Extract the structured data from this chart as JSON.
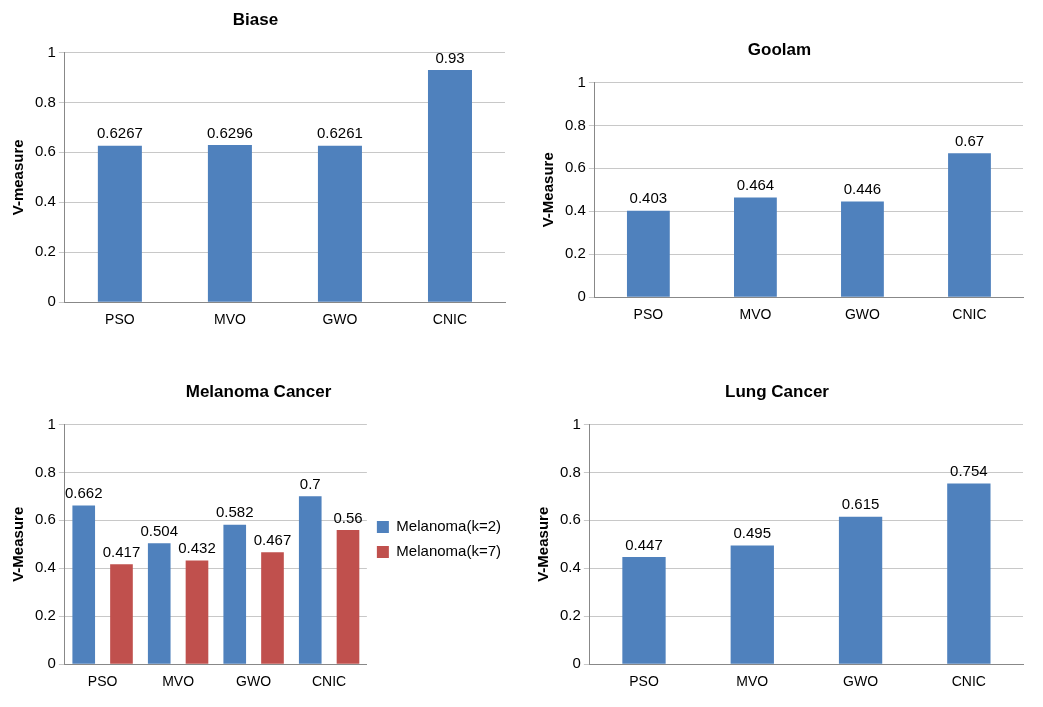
{
  "chart_data": [
    {
      "type": "bar",
      "title": "Biase",
      "ylabel": "V-measure",
      "categories": [
        "PSO",
        "MVO",
        "GWO",
        "CNIC"
      ],
      "values": [
        0.6267,
        0.6296,
        0.6261,
        0.93
      ],
      "color": "#4f81bd",
      "ylim": [
        0,
        1
      ],
      "yticks": [
        0,
        0.2,
        0.4,
        0.6,
        0.8,
        1
      ],
      "grid": "y",
      "data_labels": true
    },
    {
      "type": "bar",
      "title": "Goolam",
      "ylabel": "V-Measure",
      "categories": [
        "PSO",
        "MVO",
        "GWO",
        "CNIC"
      ],
      "values": [
        0.403,
        0.464,
        0.446,
        0.67
      ],
      "color": "#4f81bd",
      "ylim": [
        0,
        1
      ],
      "yticks": [
        0,
        0.2,
        0.4,
        0.6,
        0.8,
        1
      ],
      "grid": "y",
      "data_labels": true
    },
    {
      "type": "bar",
      "title": "Melanoma Cancer",
      "ylabel": "V-Measure",
      "categories": [
        "PSO",
        "MVO",
        "GWO",
        "CNIC"
      ],
      "series": [
        {
          "name": "Melanoma(k=2)",
          "color": "#4f81bd",
          "values": [
            0.662,
            0.504,
            0.582,
            0.7
          ]
        },
        {
          "name": "Melanoma(k=7)",
          "color": "#c0504d",
          "values": [
            0.417,
            0.432,
            0.467,
            0.56
          ]
        }
      ],
      "ylim": [
        0,
        1
      ],
      "yticks": [
        0,
        0.2,
        0.4,
        0.6,
        0.8,
        1
      ],
      "grid": "y",
      "legend": "right",
      "data_labels": true
    },
    {
      "type": "bar",
      "title": "Lung Cancer",
      "ylabel": "V-Measure",
      "categories": [
        "PSO",
        "MVO",
        "GWO",
        "CNIC"
      ],
      "values": [
        0.447,
        0.495,
        0.615,
        0.754
      ],
      "color": "#4f81bd",
      "ylim": [
        0,
        1
      ],
      "yticks": [
        0,
        0.2,
        0.4,
        0.6,
        0.8,
        1
      ],
      "grid": "y",
      "data_labels": true
    }
  ]
}
